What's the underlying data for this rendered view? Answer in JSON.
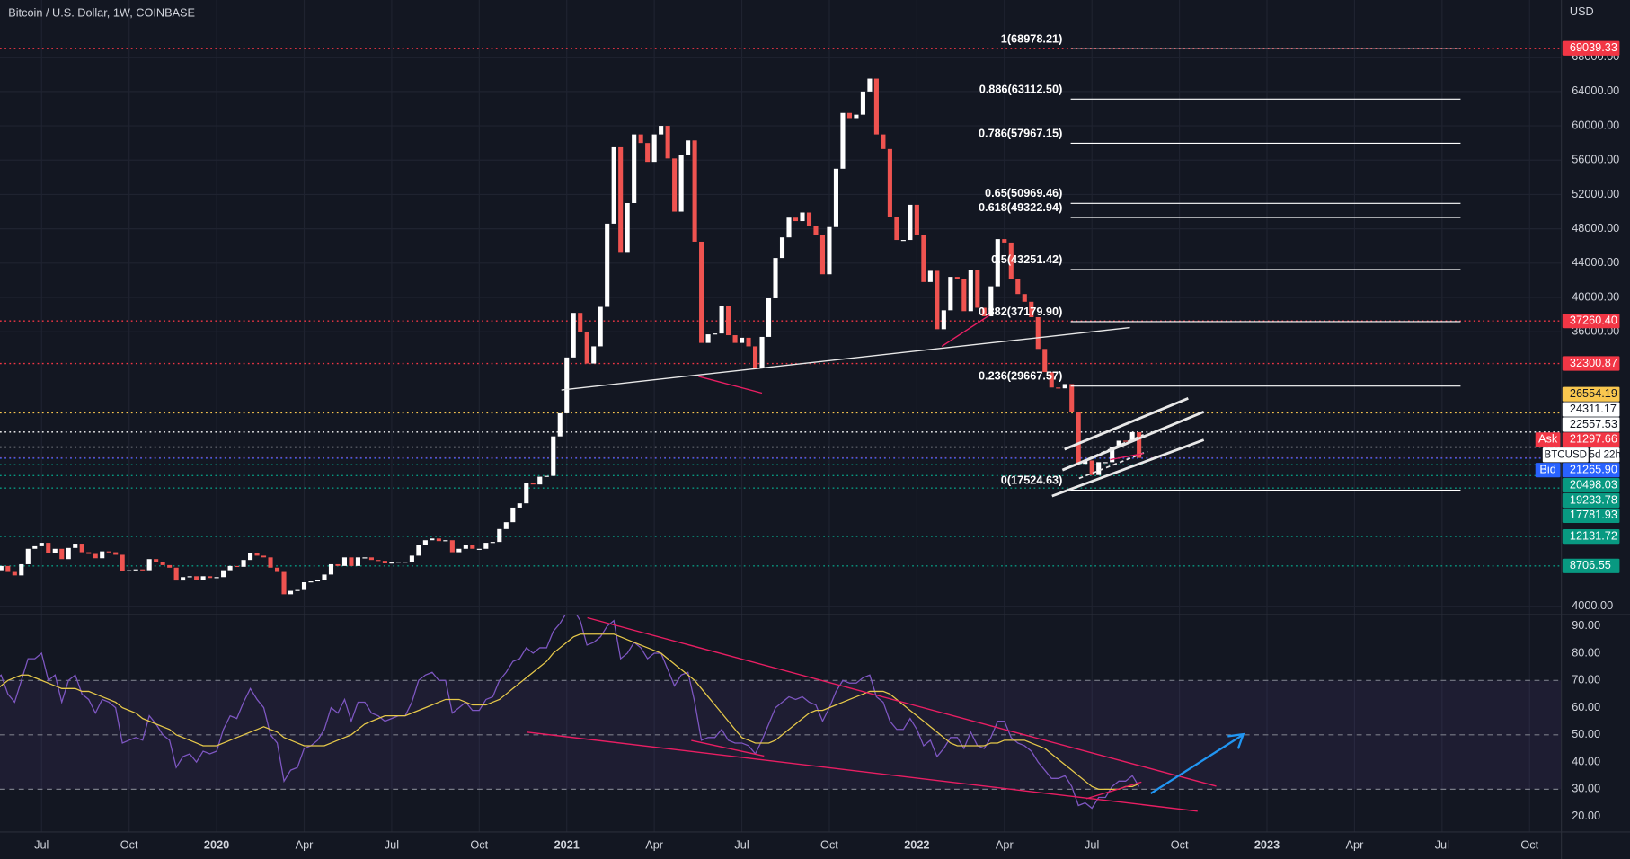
{
  "chart_data": [
    {
      "type": "candlestick",
      "title": "Bitcoin / U.S. Dollar, 1W, COINBASE",
      "currency": "USD",
      "up_color": "#ffffff",
      "down_color": "#ef5350",
      "close": [
        8200,
        8700,
        8000,
        7600,
        8900,
        10700,
        11000,
        11400,
        10200,
        10700,
        9500,
        10800,
        11300,
        10300,
        10100,
        9600,
        10400,
        10300,
        10000,
        8100,
        8200,
        8300,
        8200,
        9500,
        9200,
        8800,
        8500,
        7000,
        7400,
        7500,
        7100,
        7500,
        7300,
        7400,
        8200,
        8700,
        8600,
        9400,
        10200,
        9900,
        9700,
        8500,
        8000,
        5400,
        5800,
        5900,
        6800,
        6900,
        7100,
        7700,
        8900,
        8700,
        9700,
        8700,
        9700,
        9700,
        9400,
        9300,
        9000,
        9100,
        9200,
        9200,
        9900,
        11100,
        11700,
        11900,
        11600,
        11700,
        10300,
        10700,
        11100,
        10700,
        10700,
        11400,
        11500,
        13000,
        13800,
        15500,
        16000,
        18400,
        18200,
        19100,
        19200,
        23800,
        26500,
        33000,
        38200,
        36000,
        32300,
        34300,
        38900,
        48600,
        57500,
        45200,
        51000,
        59000,
        58000,
        55800,
        59000,
        60000,
        56200,
        50000,
        56600,
        58300,
        46500,
        34700,
        35700,
        35800,
        39000,
        35600,
        34700,
        35300,
        34300,
        31800,
        35400,
        39900,
        44600,
        47000,
        49300,
        48900,
        49900,
        48300,
        47300,
        42700,
        48200,
        55000,
        61500,
        60900,
        61300,
        64000,
        65500,
        59000,
        57300,
        49400,
        46700,
        46700,
        50800,
        47300,
        41800,
        43100,
        36300,
        38500,
        42400,
        42200,
        38400,
        43200,
        38800,
        37800,
        41300,
        46800,
        46400,
        42200,
        40400,
        39500,
        37700,
        34000,
        31300,
        29500,
        29400,
        29900,
        26600,
        20600,
        21000,
        19300,
        20800,
        20800,
        22600,
        23300,
        23200,
        24300,
        21300
      ],
      "categories": [
        "Jul",
        "Oct",
        "2020",
        "Apr",
        "Jul",
        "Oct",
        "2021",
        "Apr",
        "Jul",
        "Oct",
        "2022",
        "Apr",
        "Jul",
        "Oct",
        "2023",
        "Apr",
        "Jul",
        "Oct"
      ],
      "ylim": [
        3150,
        74670
      ],
      "yticks": [
        {
          "value": 4000,
          "label": "4000.00"
        },
        {
          "value": 36000,
          "label": "36000.00"
        },
        {
          "value": 40000,
          "label": "40000.00"
        },
        {
          "value": 44000,
          "label": "44000.00"
        },
        {
          "value": 48000,
          "label": "48000.00"
        },
        {
          "value": 52000,
          "label": "52000.00"
        },
        {
          "value": 56000,
          "label": "56000.00"
        },
        {
          "value": 60000,
          "label": "60000.00"
        },
        {
          "value": 64000,
          "label": "64000.00"
        },
        {
          "value": 68000,
          "label": "68000.00"
        }
      ],
      "grid": true,
      "fib_levels": [
        {
          "label": "1(68978.21)",
          "value": 68978.21
        },
        {
          "label": "0.886(63112.50)",
          "value": 63112.5
        },
        {
          "label": "0.786(57967.15)",
          "value": 57967.15
        },
        {
          "label": "0.65(50969.46)",
          "value": 50969.46
        },
        {
          "label": "0.618(49322.94)",
          "value": 49322.94
        },
        {
          "label": "0.5(43251.42)",
          "value": 43251.42
        },
        {
          "label": "0.382(37179.90)",
          "value": 37179.9
        },
        {
          "label": "0.236(29667.57)",
          "value": 29667.57
        },
        {
          "label": "0(17524.63)",
          "value": 17524.63
        }
      ],
      "fib_color": "#ffffff",
      "price_tags": [
        {
          "label": "69039.33",
          "value": 69039.33,
          "color": "#f23645",
          "text_color": "#ffffff"
        },
        {
          "label": "37260.40",
          "value": 37260.4,
          "color": "#f23645",
          "text_color": "#ffffff"
        },
        {
          "label": "32300.87",
          "value": 32300.87,
          "color": "#f23645",
          "text_color": "#ffffff"
        },
        {
          "label": "26554.19",
          "value": 26554.19,
          "color": "#f9c74f",
          "text_color": "#131722"
        },
        {
          "label": "24311.17",
          "value": 24311.17,
          "color": "#ffffff",
          "text_color": "#131722"
        },
        {
          "label": "22557.53",
          "value": 22557.53,
          "color": "#ffffff",
          "text_color": "#131722"
        },
        {
          "prefix": "Ask",
          "label": "21297.66",
          "value": 21297.66,
          "color": "#f23645",
          "text_color": "#ffffff"
        },
        {
          "symbol": "BTCUSD",
          "countdown": "5d 22h"
        },
        {
          "prefix": "Bid",
          "label": "21265.90",
          "value": 21265.9,
          "color": "#2962ff",
          "text_color": "#ffffff"
        },
        {
          "label": "20498.03",
          "value": 20498.03,
          "color": "#089981",
          "text_color": "#ffffff"
        },
        {
          "label": "19233.78",
          "value": 19233.78,
          "color": "#089981",
          "text_color": "#ffffff"
        },
        {
          "label": "17781.93",
          "value": 17781.93,
          "color": "#089981",
          "text_color": "#ffffff"
        },
        {
          "label": "12131.72",
          "value": 12131.72,
          "color": "#089981",
          "text_color": "#ffffff"
        },
        {
          "label": "8706.55",
          "value": 8706.55,
          "color": "#089981",
          "text_color": "#ffffff"
        }
      ]
    },
    {
      "type": "line",
      "ylim": [
        14.3,
        94.2
      ],
      "yticks": [
        {
          "value": 20,
          "label": "20.00"
        },
        {
          "value": 30,
          "label": "30.00"
        },
        {
          "value": 40,
          "label": "40.00"
        },
        {
          "value": 50,
          "label": "50.00"
        },
        {
          "value": 60,
          "label": "60.00"
        },
        {
          "value": 70,
          "label": "70.00"
        },
        {
          "value": 80,
          "label": "80.00"
        },
        {
          "value": 90,
          "label": "90.00"
        }
      ],
      "levels": [
        70,
        50,
        30
      ],
      "band_color": "#7e57c2",
      "series": [
        {
          "color": "#7e57c2",
          "values": [
            70,
            72,
            65,
            62,
            70,
            78,
            78,
            80,
            70,
            72,
            62,
            70,
            72,
            65,
            63,
            58,
            63,
            62,
            60,
            47,
            48,
            49,
            48,
            57,
            54,
            50,
            48,
            38,
            42,
            43,
            40,
            44,
            43,
            44,
            52,
            57,
            56,
            62,
            67,
            63,
            60,
            50,
            47,
            33,
            37,
            38,
            45,
            46,
            48,
            52,
            60,
            58,
            63,
            55,
            62,
            62,
            58,
            57,
            55,
            56,
            57,
            57,
            62,
            70,
            72,
            73,
            70,
            70,
            58,
            60,
            62,
            59,
            59,
            63,
            64,
            70,
            73,
            77,
            78,
            82,
            80,
            82,
            82,
            88,
            91,
            95,
            96,
            92,
            83,
            84,
            86,
            90,
            92,
            78,
            80,
            84,
            82,
            78,
            80,
            80,
            74,
            68,
            72,
            73,
            62,
            48,
            49,
            49,
            52,
            48,
            47,
            47,
            46,
            43,
            48,
            54,
            60,
            62,
            64,
            63,
            64,
            62,
            61,
            55,
            60,
            66,
            70,
            69,
            69,
            71,
            72,
            64,
            62,
            55,
            52,
            52,
            56,
            52,
            46,
            48,
            42,
            45,
            49,
            49,
            45,
            51,
            46,
            45,
            49,
            55,
            55,
            49,
            47,
            46,
            44,
            40,
            37,
            34,
            34,
            35,
            31,
            24,
            25,
            23,
            27,
            27,
            31,
            33,
            33,
            35,
            31
          ]
        },
        {
          "color": "#e6c84a",
          "values": [
            66,
            68,
            70,
            71,
            72,
            72,
            71,
            70,
            69,
            68,
            67,
            67,
            67,
            66,
            66,
            65,
            64,
            63,
            62,
            60,
            59,
            58,
            56,
            55,
            54,
            53,
            52,
            50,
            49,
            48,
            47,
            46,
            46,
            46,
            47,
            48,
            49,
            50,
            51,
            52,
            53,
            52,
            51,
            49,
            48,
            47,
            46,
            46,
            46,
            46,
            47,
            48,
            49,
            50,
            52,
            54,
            55,
            56,
            57,
            57,
            57,
            57,
            58,
            59,
            60,
            61,
            62,
            63,
            63,
            63,
            62,
            61,
            61,
            61,
            62,
            63,
            65,
            67,
            69,
            71,
            73,
            75,
            77,
            80,
            82,
            84,
            86,
            87,
            87,
            87,
            87,
            87,
            87,
            86,
            85,
            84,
            83,
            82,
            81,
            80,
            78,
            76,
            74,
            72,
            70,
            67,
            64,
            61,
            58,
            55,
            52,
            49,
            48,
            47,
            47,
            47,
            48,
            50,
            52,
            54,
            56,
            58,
            59,
            59,
            60,
            61,
            62,
            63,
            64,
            65,
            66,
            66,
            66,
            65,
            63,
            61,
            59,
            57,
            55,
            53,
            51,
            49,
            47,
            46,
            46,
            46,
            46,
            46,
            47,
            47,
            48,
            48,
            48,
            48,
            47,
            46,
            45,
            43,
            41,
            39,
            37,
            35,
            33,
            31,
            30,
            30,
            30,
            30,
            31,
            31,
            32
          ]
        }
      ]
    }
  ]
}
